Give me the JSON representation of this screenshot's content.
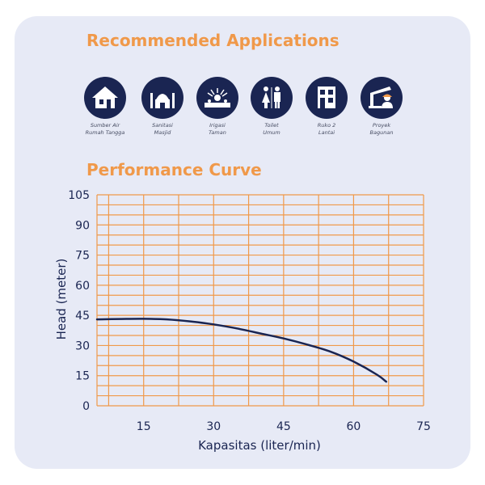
{
  "sections": {
    "applications_title": "Recommended Applications",
    "performance_title": "Performance Curve"
  },
  "applications": [
    {
      "line1": "Sumber Air",
      "line2": "Rumah Tangga",
      "icon": "house-icon"
    },
    {
      "line1": "Sanitasi",
      "line2": "Masjid",
      "icon": "mosque-icon"
    },
    {
      "line1": "Irigasi",
      "line2": "Taman",
      "icon": "garden-sprinkler-icon"
    },
    {
      "line1": "Toilet",
      "line2": "Umum",
      "icon": "public-toilet-icon"
    },
    {
      "line1": "Ruko 2",
      "line2": "Lantai",
      "icon": "shophouse-icon"
    },
    {
      "line1": "Proyek",
      "line2": "Bagunan",
      "icon": "construction-icon"
    }
  ],
  "colors": {
    "accent": "#f0994a",
    "icon_bg": "#1a2552",
    "card_bg": "#e7eaf6",
    "grid": "#f0994a",
    "curve": "#1a2552"
  },
  "chart_data": {
    "type": "line",
    "title": "Performance Curve",
    "xlabel": "Kapasitas (liter/min)",
    "ylabel": "Head (meter)",
    "xlim": [
      5,
      75
    ],
    "ylim": [
      0,
      105
    ],
    "xticks": [
      15,
      30,
      45,
      60,
      75
    ],
    "yticks": [
      0,
      15,
      30,
      45,
      60,
      75,
      90,
      105
    ],
    "grid": true,
    "series": [
      {
        "name": "",
        "x": [
          5,
          10,
          15,
          20,
          25,
          30,
          35,
          40,
          45,
          50,
          55,
          60,
          65,
          67
        ],
        "y": [
          43,
          43.2,
          43.3,
          43,
          42,
          40.5,
          38.5,
          36,
          33.5,
          30.5,
          27,
          22,
          15.5,
          12
        ]
      }
    ]
  }
}
